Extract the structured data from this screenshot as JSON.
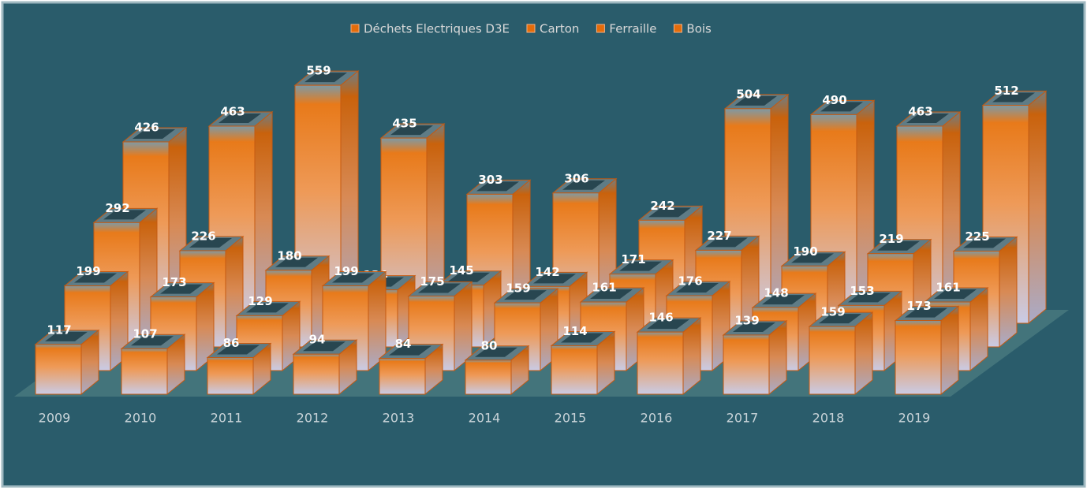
{
  "chart_data": {
    "type": "bar3d",
    "categories": [
      "2009",
      "2010",
      "2011",
      "2012",
      "2013",
      "2014",
      "2015",
      "2016",
      "2017",
      "2018",
      "2019"
    ],
    "series": [
      {
        "name": "Déchets Electriques D3E",
        "color": "#e46c0a",
        "values": [
          117,
          107,
          86,
          94,
          84,
          80,
          114,
          146,
          139,
          159,
          173
        ]
      },
      {
        "name": "Carton",
        "color": "#e46c0a",
        "values": [
          199,
          173,
          129,
          199,
          175,
          159,
          161,
          176,
          148,
          153,
          161
        ]
      },
      {
        "name": "Ferraille",
        "color": "#e46c0a",
        "values": [
          292,
          226,
          180,
          134,
          145,
          142,
          171,
          227,
          190,
          219,
          225
        ]
      },
      {
        "name": "Bois",
        "color": "#e46c0a",
        "values": [
          426,
          463,
          559,
          435,
          303,
          306,
          242,
          504,
          490,
          463,
          512
        ]
      }
    ],
    "legend": "top"
  }
}
